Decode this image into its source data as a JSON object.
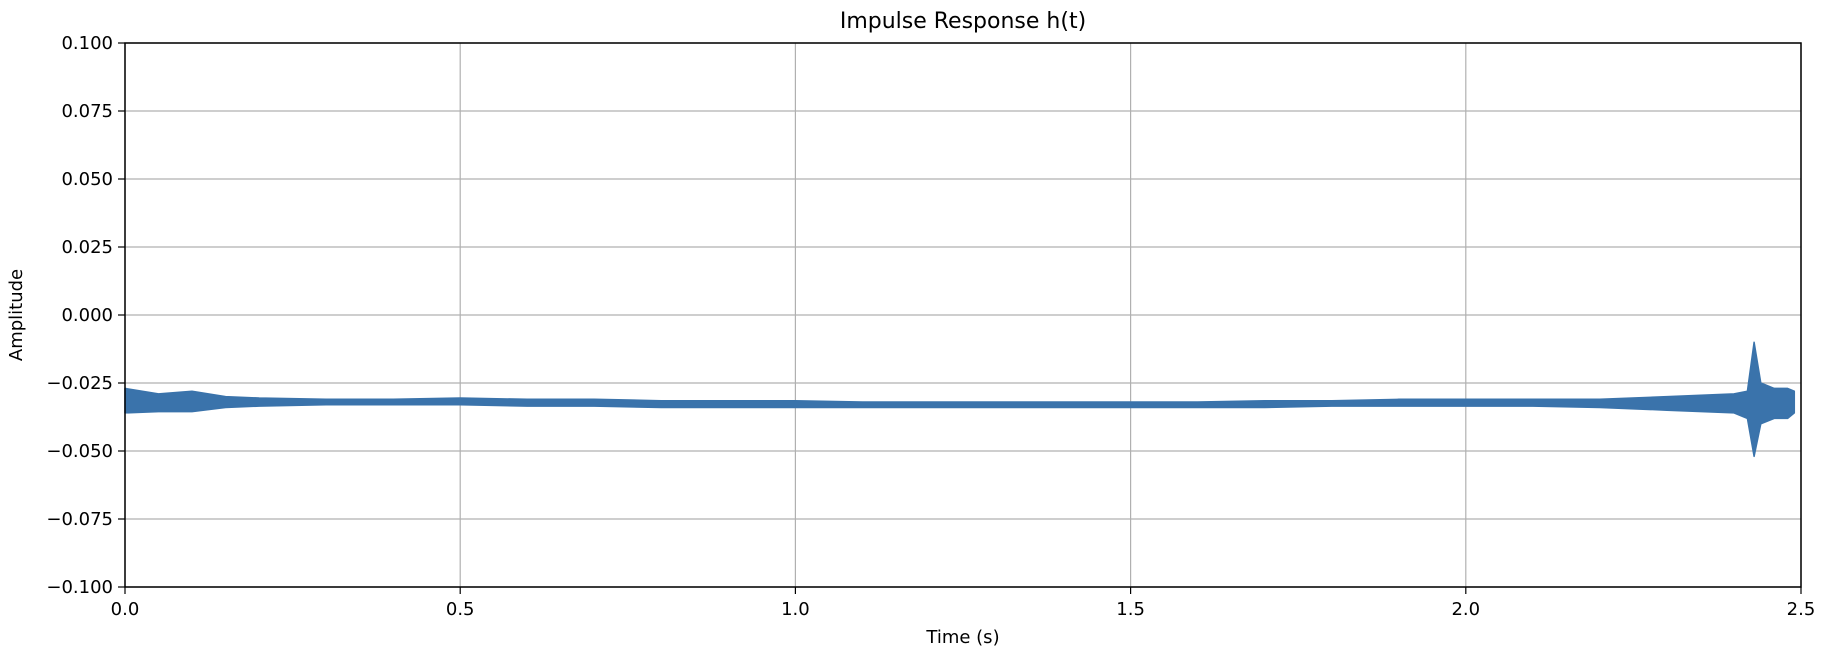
{
  "chart_data": {
    "type": "line",
    "title": "Impulse Response h(t)",
    "xlabel": "Time (s)",
    "ylabel": "Amplitude",
    "xlim": [
      0.0,
      2.5
    ],
    "ylim": [
      -0.1,
      0.1
    ],
    "grid": true,
    "x_ticks": [
      0.0,
      0.5,
      1.0,
      1.5,
      2.0,
      2.5
    ],
    "x_tick_labels": [
      "0.0",
      "0.5",
      "1.0",
      "1.5",
      "2.0",
      "2.5"
    ],
    "y_ticks": [
      0.1,
      0.075,
      0.05,
      0.025,
      0.0,
      -0.025,
      -0.05,
      -0.075,
      -0.1
    ],
    "y_tick_labels": [
      "0.100",
      "0.075",
      "0.050",
      "0.025",
      "0.000",
      "−0.025",
      "−0.050",
      "−0.075",
      "−0.100"
    ],
    "series_color": "#3a73ab",
    "series": [
      {
        "x": [
          0.0,
          0.05,
          0.1,
          0.15,
          0.2,
          0.3,
          0.4,
          0.5,
          0.6,
          0.7,
          0.8,
          0.9,
          1.0,
          1.1,
          1.2,
          1.3,
          1.4,
          1.5,
          1.6,
          1.7,
          1.8,
          1.9,
          2.0,
          2.1,
          2.2,
          2.3,
          2.4,
          2.42,
          2.43,
          2.44,
          2.46,
          2.48,
          2.49
        ],
        "y_min": [
          -0.036,
          -0.0355,
          -0.0355,
          -0.034,
          -0.0335,
          -0.033,
          -0.033,
          -0.033,
          -0.0335,
          -0.0335,
          -0.034,
          -0.034,
          -0.034,
          -0.034,
          -0.034,
          -0.034,
          -0.034,
          -0.034,
          -0.034,
          -0.034,
          -0.0335,
          -0.0335,
          -0.0335,
          -0.0335,
          -0.034,
          -0.035,
          -0.036,
          -0.038,
          -0.052,
          -0.04,
          -0.038,
          -0.038,
          -0.036
        ],
        "y_max": [
          -0.027,
          -0.029,
          -0.028,
          -0.03,
          -0.0305,
          -0.031,
          -0.031,
          -0.0305,
          -0.031,
          -0.031,
          -0.0315,
          -0.0315,
          -0.0315,
          -0.032,
          -0.032,
          -0.032,
          -0.032,
          -0.032,
          -0.032,
          -0.0315,
          -0.0315,
          -0.031,
          -0.031,
          -0.031,
          -0.031,
          -0.03,
          -0.029,
          -0.028,
          -0.01,
          -0.025,
          -0.027,
          -0.027,
          -0.028
        ]
      }
    ]
  }
}
